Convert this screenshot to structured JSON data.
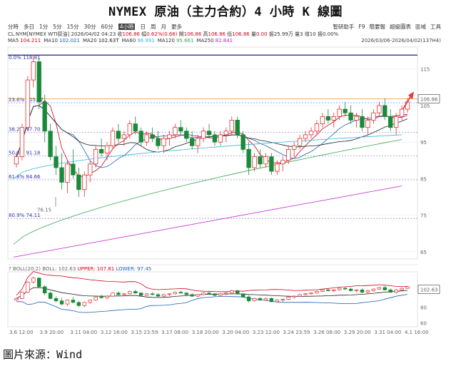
{
  "title": "NYMEX 原油（主力合約）4 小時 K 線圖",
  "toolbar": {
    "periods": [
      "分時",
      "多日",
      "1分",
      "5分",
      "15分",
      "30分",
      "60分",
      "4小時",
      "日",
      "周",
      "月",
      "更多"
    ],
    "active": "4小時",
    "right_items": [
      "智研助手",
      "F9",
      "簡要報",
      "超級圖表",
      "區域",
      "工具"
    ]
  },
  "quote": {
    "symbol": "CL.NYM[NYMEX WTI原油]",
    "datetime": "2026/04/02 04:23",
    "close_label": "收",
    "close": "106.86",
    "change_label": "幅",
    "change": "0.62%(0.66)",
    "open_label": "開",
    "open": "106.86",
    "high_label": "高",
    "high": "106.86",
    "low_label": "低",
    "low": "106.86",
    "volume_label": "量",
    "volume": "0.00",
    "amp_label": "振",
    "amp": "25.99万",
    "count_label": "量",
    "count": "3",
    "oi_label": "增",
    "oi": "10",
    "chg_label": "振",
    "chg": "0.00%"
  },
  "ma": [
    {
      "label": "MA5",
      "value": "104.211",
      "color": "#d0021b"
    },
    {
      "label": "MA10",
      "value": "102.021",
      "color": "#1a5fb4"
    },
    {
      "label": "MA20",
      "value": "102.63T",
      "color": "#222222"
    },
    {
      "label": "MA60",
      "value": "96.991",
      "color": "#33b5e5"
    },
    {
      "label": "MA120",
      "value": "95.661",
      "color": "#3aa655"
    },
    {
      "label": "MA250",
      "value": "82.841",
      "color": "#c020d0"
    }
  ],
  "date_range": "2026/03/06-2026/04/02(137H4)",
  "current_price_label": "106.86",
  "fib": [
    {
      "pct": "0.0%",
      "price": "118.81"
    },
    {
      "pct": "23.6%",
      "price": "105.77"
    },
    {
      "pct": "38.2%",
      "price": "97.70"
    },
    {
      "pct": "50.0%",
      "price": "91.18"
    },
    {
      "pct": "61.8%",
      "price": "84.66"
    },
    {
      "pct": "80.9%",
      "price": "74.11"
    }
  ],
  "low_annotation": "76.15",
  "boll": {
    "label": "BOLL(20,2)",
    "boll_label": "BOLL:",
    "boll_value": "102.63",
    "upper_label": "UPPER:",
    "upper_value": "107.81",
    "lower_label": "LOWER:",
    "lower_value": "97.45",
    "last_label": "102.63",
    "y_ticks": [
      "100",
      "80",
      "60"
    ]
  },
  "source": "圖片來源：Wind",
  "chart_data": {
    "type": "candlestick",
    "ylim": [
      63,
      121
    ],
    "yticks": [
      115,
      105,
      95,
      85,
      75,
      65
    ],
    "xticks": [
      "3.6 12:00",
      "3.9 20:00",
      "3.11 04:00",
      "3.12 16:00",
      "3.15 23:59",
      "3.17 08:00",
      "3.18 20:00",
      "3.20 04:00",
      "3.23 12:00",
      "3.24 23:59",
      "3.26 08:00",
      "3.29 20:00",
      "3.31 04:00",
      "4.1 16:00"
    ],
    "last_price": 106.86,
    "candles": [
      [
        89,
        92,
        88,
        91
      ],
      [
        91,
        100,
        90,
        99
      ],
      [
        99,
        113,
        98,
        112
      ],
      [
        112,
        119,
        110,
        117
      ],
      [
        117,
        118,
        104,
        106
      ],
      [
        106,
        108,
        95,
        98
      ],
      [
        98,
        100,
        90,
        91
      ],
      [
        91,
        94,
        86,
        88
      ],
      [
        88,
        92,
        82,
        84
      ],
      [
        84,
        90,
        81,
        89
      ],
      [
        89,
        93,
        85,
        86
      ],
      [
        86,
        88,
        80,
        82
      ],
      [
        82,
        87,
        80,
        86
      ],
      [
        86,
        90,
        84,
        89
      ],
      [
        89,
        94,
        88,
        93
      ],
      [
        93,
        96,
        91,
        92
      ],
      [
        92,
        95,
        90,
        94
      ],
      [
        94,
        99,
        93,
        98
      ],
      [
        98,
        100,
        95,
        96
      ],
      [
        96,
        98,
        94,
        97
      ],
      [
        97,
        101,
        96,
        100
      ],
      [
        100,
        102,
        97,
        98
      ],
      [
        98,
        99,
        94,
        95
      ],
      [
        95,
        98,
        94,
        97
      ],
      [
        97,
        99,
        95,
        96
      ],
      [
        96,
        98,
        93,
        94
      ],
      [
        94,
        97,
        92,
        96
      ],
      [
        96,
        98,
        94,
        97
      ],
      [
        97,
        100,
        96,
        99
      ],
      [
        99,
        101,
        97,
        98
      ],
      [
        98,
        99,
        95,
        96
      ],
      [
        96,
        98,
        93,
        94
      ],
      [
        94,
        97,
        92,
        96
      ],
      [
        96,
        99,
        95,
        98
      ],
      [
        98,
        100,
        96,
        97
      ],
      [
        97,
        98,
        94,
        95
      ],
      [
        95,
        98,
        94,
        97
      ],
      [
        97,
        99,
        95,
        98
      ],
      [
        98,
        102,
        97,
        101
      ],
      [
        101,
        102,
        96,
        97
      ],
      [
        97,
        98,
        92,
        93
      ],
      [
        93,
        95,
        86,
        88
      ],
      [
        88,
        92,
        87,
        91
      ],
      [
        91,
        93,
        88,
        89
      ],
      [
        89,
        92,
        88,
        91
      ],
      [
        91,
        92,
        86,
        87
      ],
      [
        87,
        90,
        86,
        89
      ],
      [
        89,
        91,
        87,
        90
      ],
      [
        90,
        94,
        89,
        93
      ],
      [
        93,
        95,
        91,
        94
      ],
      [
        94,
        97,
        93,
        96
      ],
      [
        96,
        98,
        95,
        97
      ],
      [
        97,
        99,
        96,
        98
      ],
      [
        98,
        101,
        97,
        100
      ],
      [
        100,
        103,
        99,
        102
      ],
      [
        102,
        104,
        100,
        101
      ],
      [
        101,
        103,
        99,
        102
      ],
      [
        102,
        105,
        101,
        104
      ],
      [
        104,
        106,
        102,
        103
      ],
      [
        103,
        105,
        100,
        101
      ],
      [
        101,
        103,
        99,
        102
      ],
      [
        102,
        104,
        98,
        99
      ],
      [
        99,
        102,
        97,
        101
      ],
      [
        101,
        104,
        100,
        103
      ],
      [
        103,
        106,
        102,
        105
      ],
      [
        105,
        107,
        101,
        102
      ],
      [
        102,
        104,
        98,
        99
      ],
      [
        99,
        103,
        97,
        102
      ],
      [
        102,
        105,
        101,
        104
      ],
      [
        104,
        107,
        103,
        106
      ]
    ]
  }
}
